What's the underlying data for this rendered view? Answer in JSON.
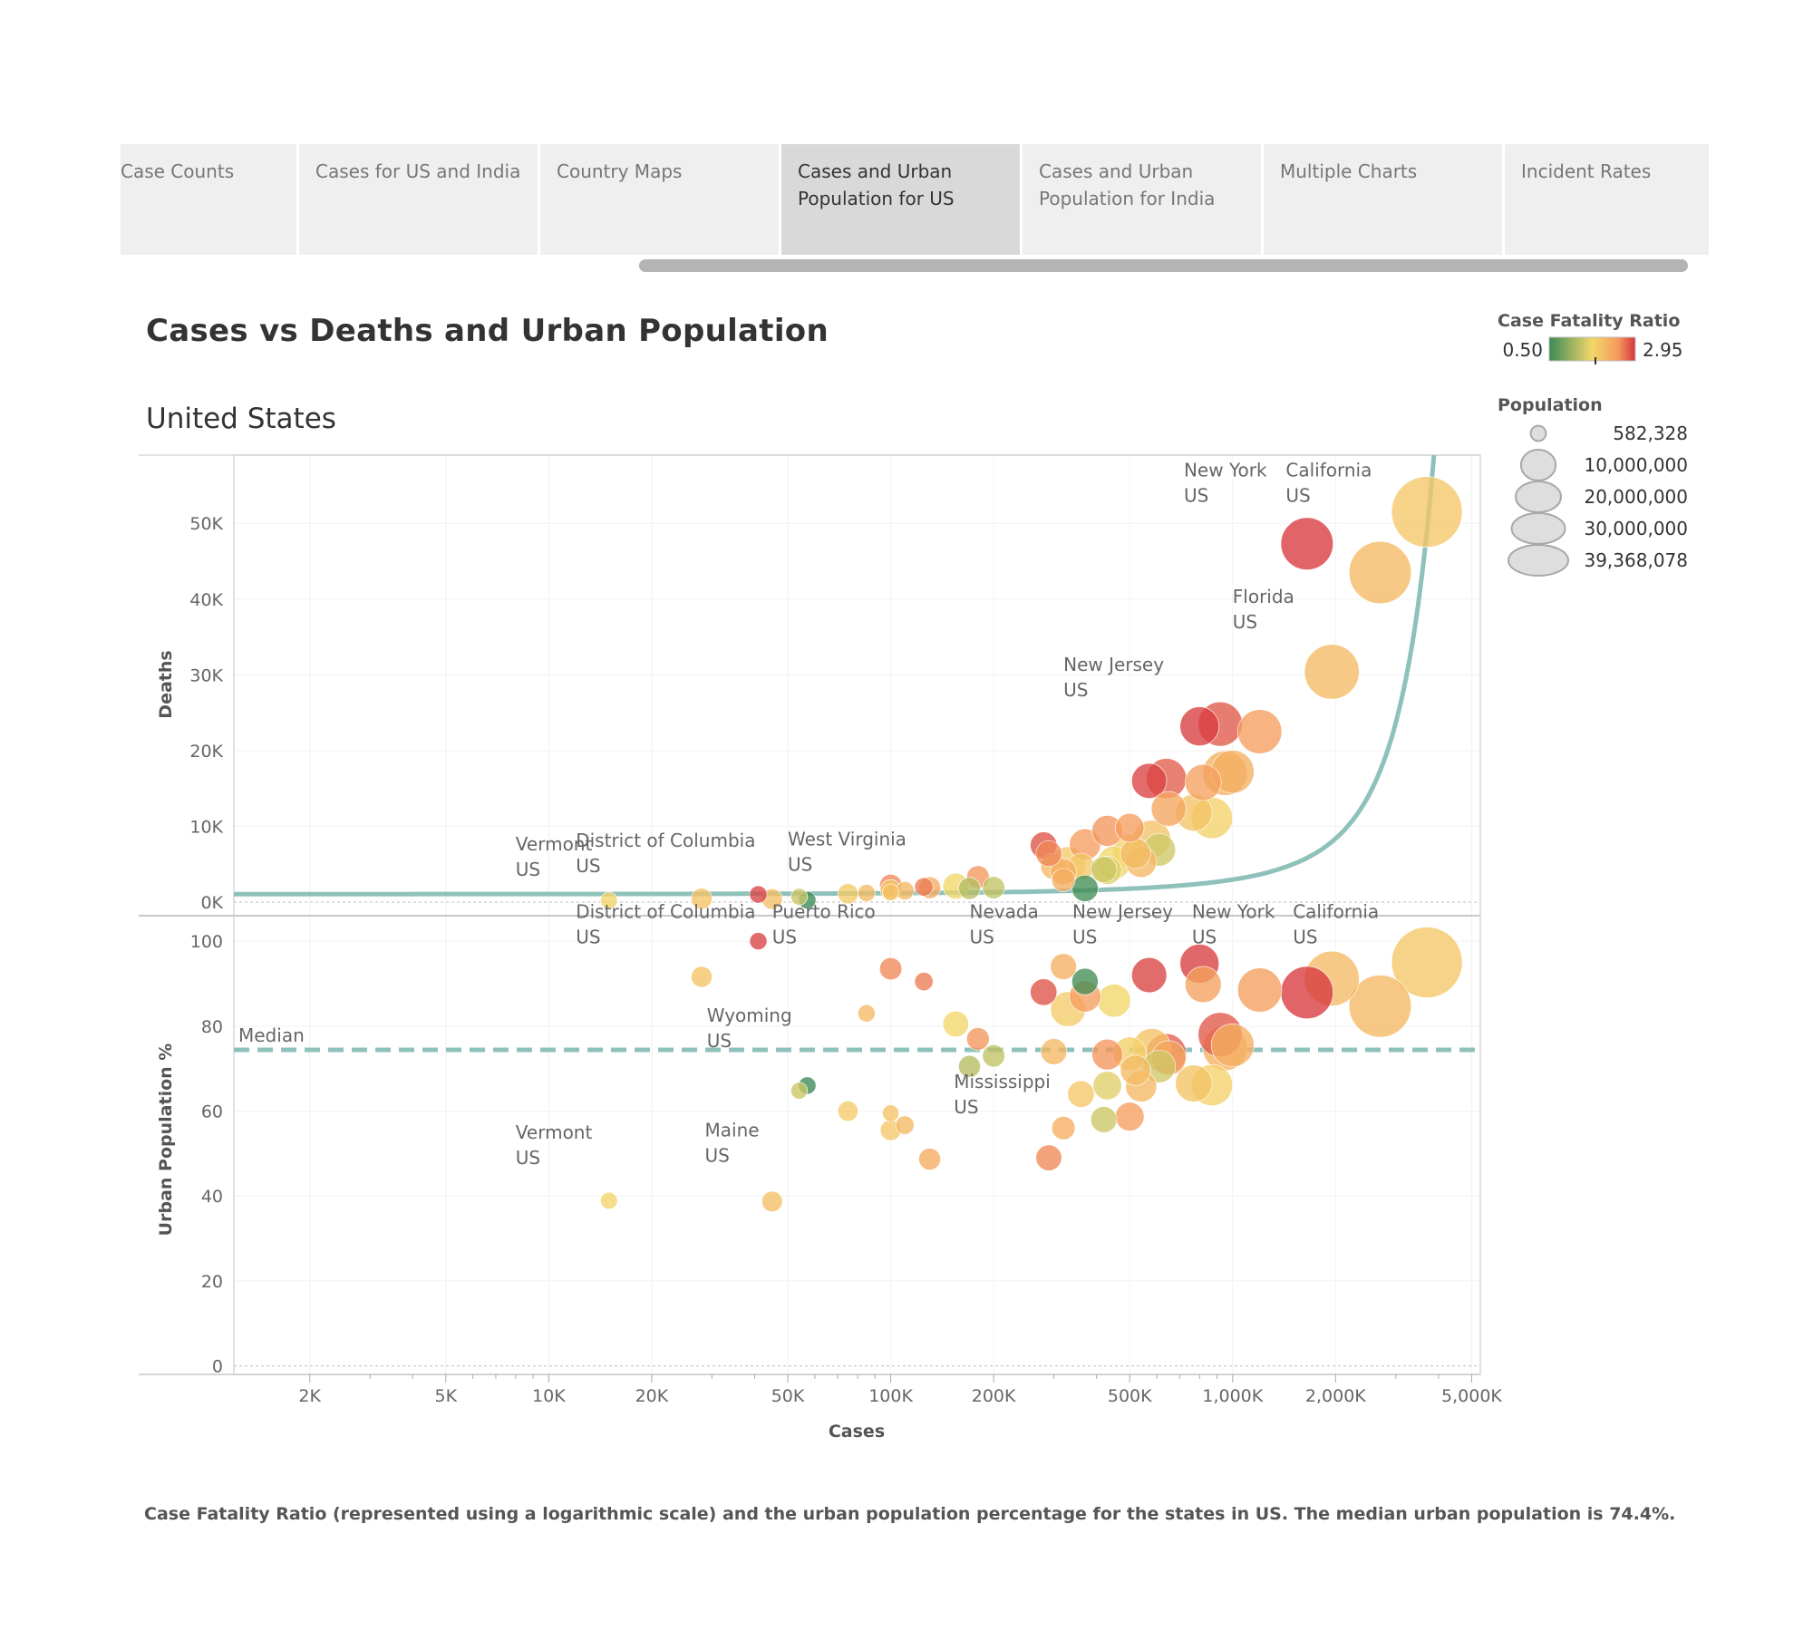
{
  "tabs": [
    {
      "label": "Case Counts",
      "active": false
    },
    {
      "label": "Cases for US and India",
      "active": false
    },
    {
      "label": "Country Maps",
      "active": false
    },
    {
      "label": "Cases and Urban Population for US",
      "active": true
    },
    {
      "label": "Cases and Urban Population for India",
      "active": false
    },
    {
      "label": "Multiple Charts",
      "active": false
    },
    {
      "label": "Incident Rates",
      "active": false
    }
  ],
  "title": "Cases vs Deaths and Urban Population",
  "subtitle": "United States",
  "footnote": "Case Fatality Ratio (represented using a logarithmic scale) and the urban population percentage for the states in US. The median urban population is 74.4%.",
  "legend": {
    "color_title": "Case Fatality Ratio",
    "color_min": "0.50",
    "color_max": "2.95",
    "size_title": "Population",
    "size_labels": [
      "582,328",
      "10,000,000",
      "20,000,000",
      "30,000,000",
      "39,368,078"
    ],
    "size_values": [
      582328,
      10000000,
      20000000,
      30000000,
      39368078
    ]
  },
  "colors": {
    "trend": "#8fc1bb",
    "median": "#8fc1bb",
    "low": "#3a8a55",
    "mid": "#f4d76a",
    "high": "#d5343d"
  },
  "chart_data": {
    "type": "scatter",
    "xlabel": "Cases",
    "x_scale": "log",
    "x_ticks": [
      2000,
      5000,
      10000,
      20000,
      50000,
      100000,
      200000,
      500000,
      1000000,
      2000000,
      5000000
    ],
    "x_tick_labels": [
      "2K",
      "5K",
      "10K",
      "20K",
      "50K",
      "100K",
      "200K",
      "500K",
      "1,000K",
      "2,000K",
      "5,000K"
    ],
    "xlim": [
      1200,
      5300000
    ],
    "top": {
      "ylabel": "Deaths",
      "ylim": [
        -1800,
        59000
      ],
      "y_ticks": [
        0,
        10000,
        20000,
        30000,
        40000,
        50000
      ],
      "y_tick_labels": [
        "0K",
        "10K",
        "20K",
        "30K",
        "40K",
        "50K"
      ],
      "trend": "exponential"
    },
    "bottom": {
      "ylabel": "Urban Population %",
      "ylim": [
        -2,
        106
      ],
      "y_ticks": [
        0,
        20,
        40,
        60,
        80,
        100
      ],
      "y_tick_labels": [
        "0",
        "20",
        "40",
        "60",
        "80",
        "100"
      ],
      "median": 74.4,
      "median_label": "Median"
    },
    "points": [
      {
        "cases": 3700000,
        "deaths": 51500,
        "urban": 95,
        "pop": 39368078,
        "cfr": 1.4
      },
      {
        "cases": 2700000,
        "deaths": 43500,
        "urban": 84.7,
        "pop": 29145505,
        "cfr": 1.6
      },
      {
        "cases": 1650000,
        "deaths": 47300,
        "urban": 87.9,
        "pop": 19336776,
        "cfr": 2.9
      },
      {
        "cases": 1950000,
        "deaths": 30400,
        "urban": 91.2,
        "pop": 21538187,
        "cfr": 1.55
      },
      {
        "cases": 800000,
        "deaths": 23200,
        "urban": 94.7,
        "pop": 9288994,
        "cfr": 2.85
      },
      {
        "cases": 920000,
        "deaths": 23500,
        "urban": 78,
        "pop": 12812508,
        "cfr": 2.6
      },
      {
        "cases": 1200000,
        "deaths": 22500,
        "urban": 88.5,
        "pop": 12700000,
        "cfr": 2.0
      },
      {
        "cases": 950000,
        "deaths": 17000,
        "urban": 74.8,
        "pop": 13000000,
        "cfr": 1.7
      },
      {
        "cases": 1000000,
        "deaths": 17200,
        "urban": 75.5,
        "pop": 11800000,
        "cfr": 1.72
      },
      {
        "cases": 640000,
        "deaths": 16300,
        "urban": 73.5,
        "pop": 10000000,
        "cfr": 2.55
      },
      {
        "cases": 570000,
        "deaths": 16000,
        "urban": 92,
        "pop": 7000000,
        "cfr": 2.8
      },
      {
        "cases": 820000,
        "deaths": 15800,
        "urban": 89.8,
        "pop": 7600000,
        "cfr": 1.95
      },
      {
        "cases": 870000,
        "deaths": 11100,
        "urban": 66.1,
        "pop": 10700000,
        "cfr": 1.28
      },
      {
        "cases": 770000,
        "deaths": 11800,
        "urban": 66.5,
        "pop": 8000000,
        "cfr": 1.45
      },
      {
        "cases": 650000,
        "deaths": 12300,
        "urban": 72.5,
        "pop": 6800000,
        "cfr": 1.88
      },
      {
        "cases": 580000,
        "deaths": 8300,
        "urban": 75,
        "pop": 8600000,
        "cfr": 1.45
      },
      {
        "cases": 610000,
        "deaths": 6900,
        "urban": 70.5,
        "pop": 5700000,
        "cfr": 1.02
      },
      {
        "cases": 500000,
        "deaths": 9800,
        "urban": 58.7,
        "pop": 4000000,
        "cfr": 2.0
      },
      {
        "cases": 430000,
        "deaths": 9400,
        "urban": 73.3,
        "pop": 4900000,
        "cfr": 2.1
      },
      {
        "cases": 370000,
        "deaths": 7600,
        "urban": 87,
        "pop": 5100000,
        "cfr": 2.0
      },
      {
        "cases": 280000,
        "deaths": 7500,
        "urban": 88,
        "pop": 3200000,
        "cfr": 2.65
      },
      {
        "cases": 290000,
        "deaths": 6400,
        "urban": 49,
        "pop": 2900000,
        "cfr": 2.2
      },
      {
        "cases": 500000,
        "deaths": 6700,
        "urban": 73.5,
        "pop": 6100000,
        "cfr": 1.3
      },
      {
        "cases": 520000,
        "deaths": 6400,
        "urban": 69.6,
        "pop": 4700000,
        "cfr": 1.55
      },
      {
        "cases": 540000,
        "deaths": 5300,
        "urban": 65.8,
        "pop": 5000000,
        "cfr": 1.6
      },
      {
        "cases": 450000,
        "deaths": 5200,
        "urban": 86,
        "pop": 6000000,
        "cfr": 1.2
      },
      {
        "cases": 330000,
        "deaths": 5000,
        "urban": 84,
        "pop": 6900000,
        "cfr": 1.35
      },
      {
        "cases": 300000,
        "deaths": 4700,
        "urban": 74,
        "pop": 3000000,
        "cfr": 1.6
      },
      {
        "cases": 360000,
        "deaths": 4700,
        "urban": 64,
        "pop": 3200000,
        "cfr": 1.4
      },
      {
        "cases": 430000,
        "deaths": 4200,
        "urban": 66,
        "pop": 3900000,
        "cfr": 1.1
      },
      {
        "cases": 420000,
        "deaths": 4300,
        "urban": 58,
        "pop": 3000000,
        "cfr": 1.0
      },
      {
        "cases": 370000,
        "deaths": 1800,
        "urban": 90.5,
        "pop": 3100000,
        "cfr": 0.52
      },
      {
        "cases": 180000,
        "deaths": 3300,
        "urban": 77,
        "pop": 1900000,
        "cfr": 2.1
      },
      {
        "cases": 320000,
        "deaths": 4000,
        "urban": 94,
        "pop": 3000000,
        "cfr": 1.7
      },
      {
        "cases": 320000,
        "deaths": 2900,
        "urban": 56,
        "pop": 2100000,
        "cfr": 1.75
      },
      {
        "cases": 155000,
        "deaths": 2100,
        "urban": 80.5,
        "pop": 2900000,
        "cfr": 1.2
      },
      {
        "cases": 200000,
        "deaths": 1900,
        "urban": 73,
        "pop": 1800000,
        "cfr": 0.95
      },
      {
        "cases": 170000,
        "deaths": 1800,
        "urban": 70.5,
        "pop": 1700000,
        "cfr": 0.9
      },
      {
        "cases": 100000,
        "deaths": 2200,
        "urban": 93.5,
        "pop": 1800000,
        "cfr": 2.2
      },
      {
        "cases": 100000,
        "deaths": 1600,
        "urban": 55.5,
        "pop": 1400000,
        "cfr": 1.4
      },
      {
        "cases": 125000,
        "deaths": 2000,
        "urban": 90.5,
        "pop": 900000,
        "cfr": 2.3
      },
      {
        "cases": 130000,
        "deaths": 1900,
        "urban": 48.7,
        "pop": 1700000,
        "cfr": 1.8
      },
      {
        "cases": 110000,
        "deaths": 1500,
        "urban": 56.7,
        "pop": 900000,
        "cfr": 1.6
      },
      {
        "cases": 75000,
        "deaths": 1100,
        "urban": 60,
        "pop": 1300000,
        "cfr": 1.35
      },
      {
        "cases": 85000,
        "deaths": 1200,
        "urban": 83,
        "pop": 700000,
        "cfr": 1.55
      },
      {
        "cases": 100000,
        "deaths": 1300,
        "urban": 59.5,
        "pop": 580000,
        "cfr": 1.45
      },
      {
        "cases": 57000,
        "deaths": 250,
        "urban": 66,
        "pop": 730000,
        "cfr": 0.5
      },
      {
        "cases": 54000,
        "deaths": 700,
        "urban": 64.8,
        "pop": 600000,
        "cfr": 1.0
      },
      {
        "cases": 41000,
        "deaths": 1000,
        "urban": 100,
        "pop": 710000,
        "cfr": 2.8
      },
      {
        "cases": 45000,
        "deaths": 400,
        "urban": 38.7,
        "pop": 1360000,
        "cfr": 1.5
      },
      {
        "cases": 28000,
        "deaths": 450,
        "urban": 91.6,
        "pop": 1450000,
        "cfr": 1.45
      },
      {
        "cases": 15000,
        "deaths": 200,
        "urban": 38.9,
        "pop": 643000,
        "cfr": 1.25
      }
    ],
    "annotations_top": [
      {
        "cases": 8000,
        "deaths": 6800,
        "line1": "Vermont",
        "line2": "US"
      },
      {
        "cases": 12000,
        "deaths": 7300,
        "line1": "District of Columbia",
        "line2": "US"
      },
      {
        "cases": 50000,
        "deaths": 7500,
        "line1": "West Virginia",
        "line2": "US"
      },
      {
        "cases": 320000,
        "deaths": 30500,
        "line1": "New Jersey",
        "line2": "US"
      },
      {
        "cases": 720000,
        "deaths": 56200,
        "line1": "New York",
        "line2": "US"
      },
      {
        "cases": 1430000,
        "deaths": 56200,
        "line1": "California",
        "line2": "US"
      },
      {
        "cases": 1000000,
        "deaths": 39500,
        "line1": "Florida",
        "line2": "US"
      }
    ],
    "annotations_bottom": [
      {
        "cases": 12000,
        "urban": 105.5,
        "line1": "District of Columbia",
        "line2": "US"
      },
      {
        "cases": 45000,
        "urban": 105.5,
        "line1": "Puerto Rico",
        "line2": "US"
      },
      {
        "cases": 170000,
        "urban": 105.5,
        "line1": "Nevada",
        "line2": "US"
      },
      {
        "cases": 340000,
        "urban": 105.5,
        "line1": "New Jersey",
        "line2": "US"
      },
      {
        "cases": 760000,
        "urban": 105.5,
        "line1": "New York",
        "line2": "US"
      },
      {
        "cases": 1500000,
        "urban": 105.5,
        "line1": "California",
        "line2": "US"
      },
      {
        "cases": 29000,
        "urban": 81,
        "line1": "Wyoming",
        "line2": "US"
      },
      {
        "cases": 153000,
        "urban": 65.5,
        "line1": "Mississippi",
        "line2": "US"
      },
      {
        "cases": 8000,
        "urban": 53.5,
        "line1": "Vermont",
        "line2": "US"
      },
      {
        "cases": 28600,
        "urban": 54,
        "line1": "Maine",
        "line2": "US"
      }
    ]
  }
}
